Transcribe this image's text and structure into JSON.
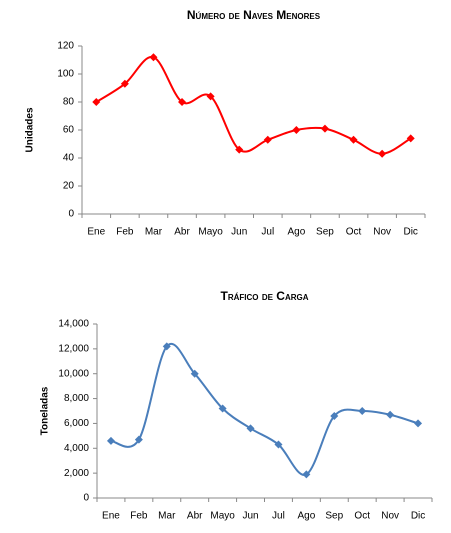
{
  "chart_data": [
    {
      "type": "line",
      "title": "Número de Naves Menores",
      "y_label": "Unidades",
      "categories": [
        "Ene",
        "Feb",
        "Mar",
        "Abr",
        "Mayo",
        "Jun",
        "Jul",
        "Ago",
        "Sep",
        "Oct",
        "Nov",
        "Dic"
      ],
      "series": [
        {
          "color": "#ff0000",
          "values": [
            80,
            93,
            112,
            80,
            84,
            46,
            53,
            60,
            61,
            53,
            43,
            54
          ]
        }
      ],
      "ylim": [
        0,
        120
      ],
      "yticks": [
        0,
        20,
        40,
        60,
        80,
        100,
        120
      ],
      "smooth": true
    },
    {
      "type": "line",
      "title": "Tráfico de Carga",
      "y_label": "Toneladas",
      "categories": [
        "Ene",
        "Feb",
        "Mar",
        "Abr",
        "Mayo",
        "Jun",
        "Jul",
        "Ago",
        "Sep",
        "Oct",
        "Nov",
        "Dic"
      ],
      "series": [
        {
          "color": "#4a7ebb",
          "values": [
            4600,
            4700,
            12200,
            10000,
            7200,
            5600,
            4300,
            1900,
            6600,
            7000,
            6700,
            6000
          ]
        }
      ],
      "ylim": [
        0,
        14000
      ],
      "yticks": [
        0,
        {
          "value": 2000,
          "label": "2,000"
        },
        {
          "value": 4000,
          "label": "4,000"
        },
        {
          "value": 6000,
          "label": "6,000"
        },
        {
          "value": 8000,
          "label": "8,000"
        },
        {
          "value": 10000,
          "label": "10,000"
        },
        {
          "value": 12000,
          "label": "12,000"
        },
        {
          "value": 14000,
          "label": "14,000"
        }
      ],
      "smooth": true
    }
  ]
}
